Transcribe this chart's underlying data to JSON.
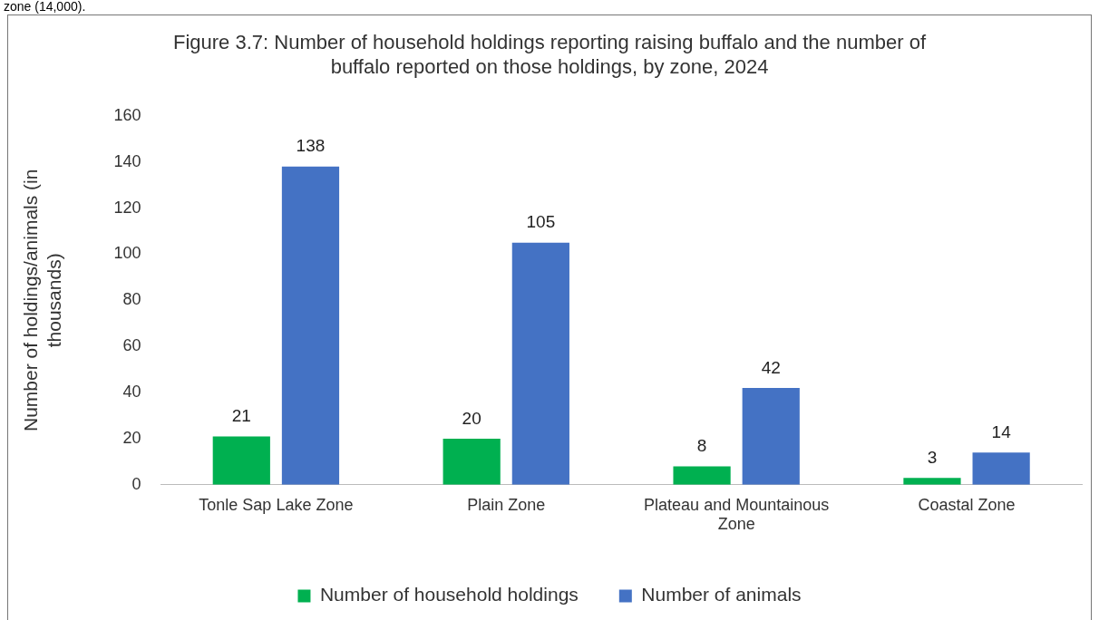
{
  "chart_data": {
    "type": "bar",
    "title": "Figure 3.7: Number of household holdings reporting raising buffalo and the number of buffalo reported on those holdings, by zone, 2024",
    "ylabel": "Number of holdings/animals (in thousands)",
    "categories": [
      "Tonle Sap Lake Zone",
      "Plain Zone",
      "Plateau and Mountainous Zone",
      "Coastal Zone"
    ],
    "series": [
      {
        "name": "Number of household holdings",
        "color": "#00b050",
        "values": [
          21,
          20,
          8,
          3
        ]
      },
      {
        "name": "Number of animals",
        "color": "#4472c4",
        "values": [
          138,
          105,
          42,
          14
        ]
      }
    ],
    "ylim": [
      0,
      160
    ],
    "yticks": [
      0,
      20,
      40,
      60,
      80,
      100,
      120,
      140,
      160
    ],
    "grid": false,
    "legend": "bottom",
    "data_labels": true,
    "annotations": [
      "zone (14,000)."
    ]
  }
}
